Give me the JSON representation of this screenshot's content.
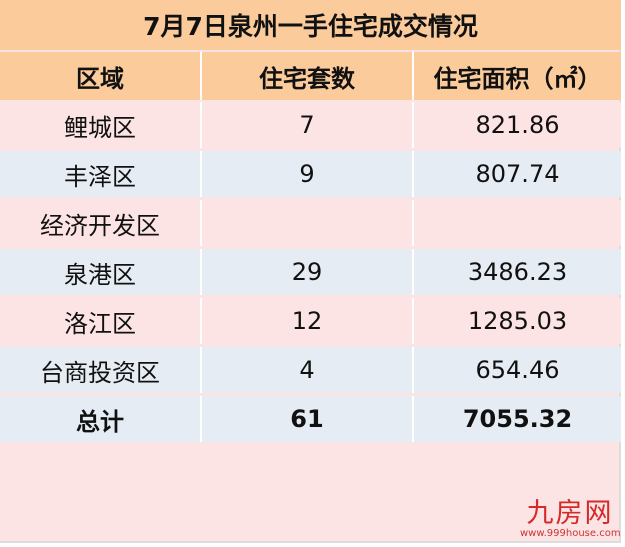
{
  "title": "7月7日泉州一手住宅成交情况",
  "headers": [
    "区域",
    "住宅套数",
    "住宅面积（㎡）"
  ],
  "rows": [
    {
      "district": "鲤城区",
      "units": "7",
      "area": "821.86"
    },
    {
      "district": "丰泽区",
      "units": "9",
      "area": "807.74"
    },
    {
      "district": "经济开发区",
      "units": "",
      "area": ""
    },
    {
      "district": "泉港区",
      "units": "29",
      "area": "3486.23"
    },
    {
      "district": "洛江区",
      "units": "12",
      "area": "1285.03"
    },
    {
      "district": "台商投资区",
      "units": "4",
      "area": "654.46"
    }
  ],
  "total": {
    "label": "总计",
    "units": "61",
    "area": "7055.32"
  },
  "watermark": {
    "brand": "九房网",
    "url": "www.999house.com"
  },
  "colors": {
    "header": "#fbcb9c",
    "row_pink": "#fde4e4",
    "row_blue": "#e6ecf4",
    "brand": "#d42a2a"
  }
}
